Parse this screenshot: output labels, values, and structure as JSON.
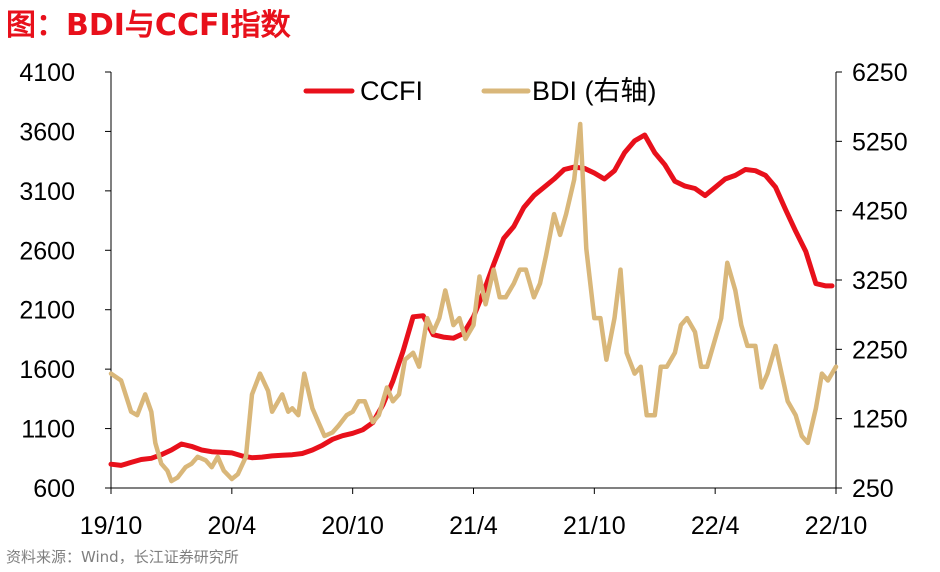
{
  "title": "图：BDI与CCFI指数",
  "source": "资料来源：Wind，长江证券研究所",
  "colors": {
    "ccfi": "#e8101b",
    "bdi": "#d9b77a",
    "axis": "#000000",
    "title": "#e8101b"
  },
  "chart_data": {
    "type": "line",
    "title": "图：BDI与CCFI指数",
    "legend": {
      "placement": "top-center",
      "entries": [
        "CCFI",
        "BDI (右轴)"
      ]
    },
    "grid": false,
    "x": {
      "ticks": [
        "19/10",
        "20/4",
        "20/10",
        "21/4",
        "21/10",
        "22/4",
        "22/10"
      ],
      "tick_months": [
        0,
        6,
        12,
        18,
        24,
        30,
        36
      ],
      "range_months": [
        0,
        36
      ]
    },
    "y_left": {
      "ylim": [
        600,
        4100
      ],
      "ticks": [
        "4100",
        "3600",
        "3100",
        "2600",
        "2100",
        "1600",
        "1100",
        "600"
      ]
    },
    "y_right": {
      "ylim": [
        250,
        6250
      ],
      "ticks": [
        "6250",
        "5250",
        "4250",
        "3250",
        "2250",
        "1250",
        "250"
      ]
    },
    "series": [
      {
        "name": "CCFI",
        "axis": "left",
        "x_months": [
          0,
          0.5,
          1,
          1.5,
          2,
          2.5,
          3,
          3.5,
          4,
          4.5,
          5,
          6,
          6.5,
          7,
          7.5,
          8,
          8.5,
          9,
          9.5,
          10,
          10.5,
          11,
          11.5,
          12,
          12.5,
          13,
          13.5,
          14,
          14.5,
          15,
          15.5,
          16,
          16.5,
          17,
          17.5,
          18,
          18.5,
          19,
          19.5,
          20,
          20.5,
          21,
          21.5,
          22,
          22.5,
          23,
          23.5,
          24,
          24.5,
          25,
          25.5,
          26,
          26.5,
          27,
          27.5,
          28,
          28.5,
          29,
          29.5,
          30,
          30.5,
          31,
          31.5,
          32,
          32.5,
          33,
          33.5,
          34,
          34.5,
          35,
          35.5,
          35.8
        ],
        "values": [
          800,
          790,
          815,
          840,
          850,
          880,
          920,
          970,
          950,
          920,
          905,
          895,
          870,
          855,
          860,
          870,
          875,
          880,
          890,
          920,
          960,
          1010,
          1040,
          1060,
          1090,
          1150,
          1300,
          1500,
          1750,
          2040,
          2050,
          1890,
          1870,
          1860,
          1900,
          2040,
          2250,
          2480,
          2700,
          2800,
          2960,
          3060,
          3130,
          3200,
          3280,
          3300,
          3290,
          3250,
          3200,
          3270,
          3420,
          3520,
          3570,
          3420,
          3320,
          3180,
          3140,
          3120,
          3060,
          3130,
          3200,
          3230,
          3280,
          3270,
          3230,
          3130,
          2940,
          2760,
          2590,
          2320,
          2300,
          2300
        ],
        "values_note": "CCFI is the left-axis series"
      },
      {
        "name": "BDI (右轴)",
        "axis": "right",
        "x_months": [
          0,
          0.5,
          1,
          1.3,
          1.7,
          2,
          2.2,
          2.5,
          2.8,
          3,
          3.3,
          3.7,
          4,
          4.3,
          4.7,
          5,
          5.3,
          5.6,
          6,
          6.3,
          6.7,
          7,
          7.4,
          7.8,
          8,
          8.5,
          8.8,
          9,
          9.3,
          9.6,
          10,
          10.3,
          10.6,
          11,
          11.3,
          11.7,
          12,
          12.3,
          12.6,
          13,
          13.3,
          13.7,
          14,
          14.3,
          14.6,
          15,
          15.3,
          15.7,
          16,
          16.3,
          16.6,
          17,
          17.3,
          17.6,
          18,
          18.3,
          18.6,
          19,
          19.3,
          19.6,
          20,
          20.3,
          20.6,
          21,
          21.3,
          21.6,
          22,
          22.3,
          22.6,
          23,
          23.3,
          23.6,
          24,
          24.3,
          24.6,
          25,
          25.3,
          25.6,
          26,
          26.3,
          26.6,
          27,
          27.3,
          27.6,
          28,
          28.3,
          28.6,
          29,
          29.3,
          29.6,
          30,
          30.3,
          30.6,
          31,
          31.3,
          31.6,
          32,
          32.3,
          32.6,
          33,
          33.3,
          33.6,
          34,
          34.3,
          34.6,
          35,
          35.3,
          35.6,
          36
        ],
        "values": [
          1900,
          1800,
          1350,
          1300,
          1600,
          1350,
          900,
          600,
          500,
          350,
          400,
          550,
          600,
          700,
          650,
          550,
          700,
          500,
          380,
          450,
          700,
          1600,
          1900,
          1650,
          1350,
          1600,
          1350,
          1400,
          1300,
          1900,
          1400,
          1200,
          1000,
          1050,
          1150,
          1300,
          1350,
          1500,
          1500,
          1200,
          1300,
          1700,
          1500,
          1600,
          2100,
          2200,
          2000,
          2700,
          2500,
          2700,
          3100,
          2600,
          2700,
          2400,
          2600,
          3300,
          2900,
          3400,
          3000,
          3000,
          3200,
          3400,
          3400,
          3000,
          3200,
          3600,
          4200,
          3900,
          4200,
          4700,
          5500,
          3700,
          2700,
          2700,
          2100,
          2700,
          3400,
          2200,
          1900,
          2000,
          1300,
          1300,
          2000,
          2000,
          2200,
          2600,
          2700,
          2500,
          2000,
          2000,
          2400,
          2700,
          3500,
          3100,
          2600,
          2300,
          2300,
          1700,
          1900,
          2300,
          1900,
          1500,
          1300,
          1000,
          900,
          1400,
          1900,
          1800,
          2000
        ],
        "values_note": "BDI is the right-axis series"
      }
    ]
  }
}
